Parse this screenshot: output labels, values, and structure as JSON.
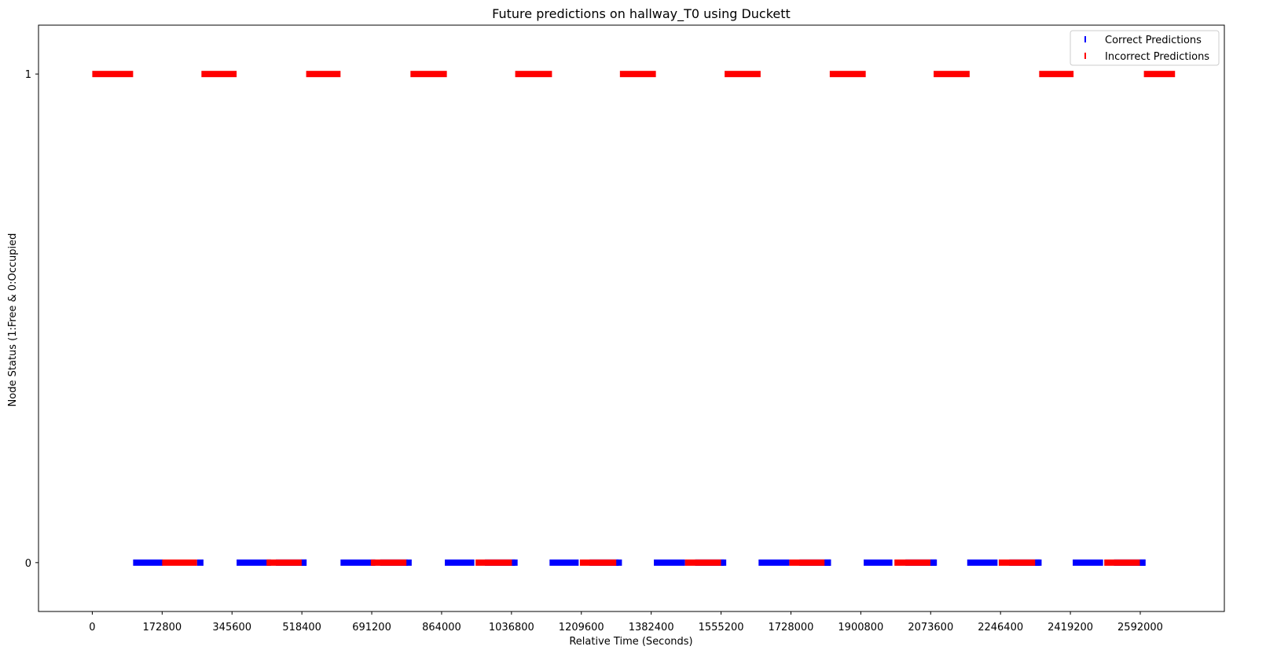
{
  "chart_data": {
    "type": "scatter",
    "title": "Future predictions on hallway_T0 using Duckett",
    "xlabel": "Relative Time (Seconds)",
    "ylabel": "Node Status (1:Free & 0:Occupied",
    "xlim": [
      -133000,
      2800000
    ],
    "ylim": [
      -0.1,
      1.1
    ],
    "xticks": [
      "0",
      "172800",
      "345600",
      "518400",
      "691200",
      "864000",
      "1036800",
      "1209600",
      "1382400",
      "1555200",
      "1728000",
      "1900800",
      "2073600",
      "2246400",
      "2419200",
      "2592000"
    ],
    "yticks": [
      "0",
      "1"
    ],
    "legend_position": "top-right",
    "series": [
      {
        "name": "Correct Predictions",
        "color": "#0000ff",
        "marker": "vertical-line",
        "y": 0,
        "segments": [
          [
            101000,
            174000
          ],
          [
            454000,
            530000
          ],
          [
            712000,
            780000
          ],
          [
            971000,
            1046000
          ],
          [
            1230000,
            1302000
          ],
          [
            1491000,
            1563000
          ],
          [
            1749000,
            1827000
          ],
          [
            2011000,
            2089000
          ],
          [
            2268000,
            2344000
          ],
          [
            2527000,
            2605000
          ],
          [
            259000,
            275000
          ],
          [
            516000,
            530000
          ],
          [
            777000,
            790000
          ],
          [
            1038000,
            1052000
          ],
          [
            1296000,
            1310000
          ],
          [
            1555000,
            1568000
          ],
          [
            1811000,
            1827000
          ],
          [
            2073000,
            2087000
          ],
          [
            2332000,
            2348000
          ],
          [
            2591000,
            2605000
          ],
          [
            357000,
            442000
          ],
          [
            614000,
            700000
          ],
          [
            872000,
            945000
          ],
          [
            1131000,
            1203000
          ],
          [
            1389000,
            1466000
          ],
          [
            1648000,
            1724000
          ],
          [
            1908000,
            1979000
          ],
          [
            2164000,
            2239000
          ],
          [
            2425000,
            2500000
          ]
        ]
      },
      {
        "name": "Incorrect Predictions",
        "color": "#ff0000",
        "marker": "vertical-line",
        "y_groups": [
          {
            "y": 1,
            "segments": [
              [
                0,
                101000
              ],
              [
                270000,
                357000
              ],
              [
                529000,
                614000
              ],
              [
                787000,
                877000
              ],
              [
                1046000,
                1137000
              ],
              [
                1305000,
                1394000
              ],
              [
                1564000,
                1653000
              ],
              [
                1824000,
                1913000
              ],
              [
                2081000,
                2170000
              ],
              [
                2342000,
                2427000
              ],
              [
                2601000,
                2678000
              ]
            ]
          },
          {
            "y": 0,
            "segments": [
              [
                172800,
                259000
              ],
              [
                431000,
                518000
              ],
              [
                689000,
                777000
              ],
              [
                948000,
                1038000
              ],
              [
                1206000,
                1296000
              ],
              [
                1466000,
                1555000
              ],
              [
                1724000,
                1811000
              ],
              [
                1984000,
                2073000
              ],
              [
                2242000,
                2332000
              ],
              [
                2503000,
                2591000
              ]
            ]
          }
        ]
      }
    ]
  }
}
